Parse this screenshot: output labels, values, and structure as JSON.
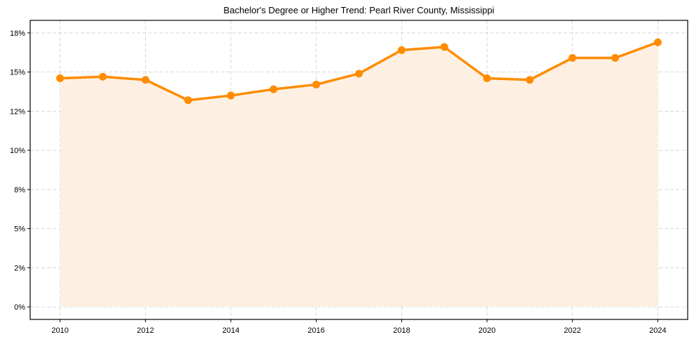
{
  "chart_data": {
    "type": "line",
    "title": "Bachelor's Degree or Higher Trend: Pearl River County, Mississippi",
    "xlabel": "",
    "ylabel": "",
    "x": [
      2010,
      2011,
      2012,
      2013,
      2014,
      2015,
      2016,
      2017,
      2018,
      2019,
      2020,
      2021,
      2022,
      2023,
      2024
    ],
    "series": [
      {
        "name": "Bachelor's Degree or Higher (%)",
        "values": [
          14.6,
          14.7,
          14.5,
          13.2,
          13.5,
          13.9,
          14.2,
          14.9,
          16.4,
          16.6,
          14.6,
          14.5,
          15.9,
          15.9,
          16.9
        ],
        "color": "#ff8c00",
        "fill": "#fdf0e3"
      }
    ],
    "xticks": [
      2010,
      2012,
      2014,
      2016,
      2018,
      2020,
      2022,
      2024
    ],
    "xtick_labels": [
      "2010",
      "2012",
      "2014",
      "2016",
      "2018",
      "2020",
      "2022",
      "2024"
    ],
    "yticks": [
      0,
      2.5,
      5,
      7.5,
      10,
      12.5,
      15,
      17.5
    ],
    "ytick_labels": [
      "0%",
      "2%",
      "5%",
      "8%",
      "10%",
      "12%",
      "15%",
      "18%"
    ],
    "xlim": [
      2009.3,
      2024.7
    ],
    "ylim": [
      -0.8,
      18.3
    ],
    "grid": true,
    "legend": null
  },
  "colors": {
    "line": "#ff8c00",
    "fill": "#fdf0e3",
    "grid": "#cccccc",
    "axis": "#000000"
  }
}
